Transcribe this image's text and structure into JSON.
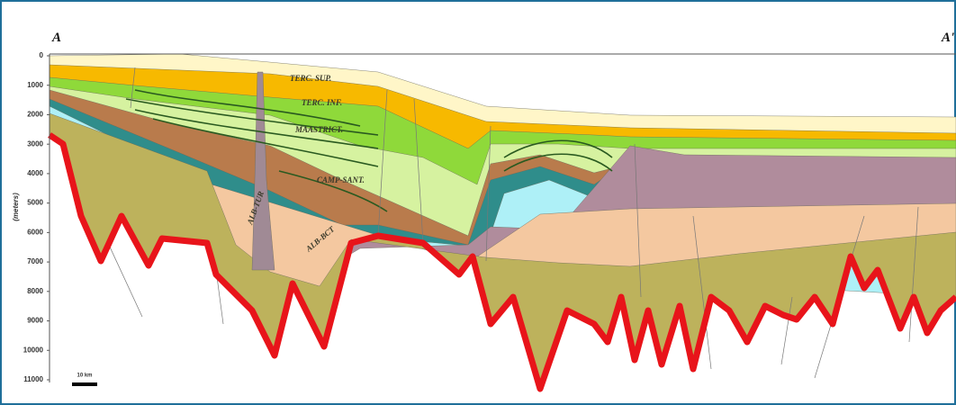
{
  "section": {
    "start_label": "A",
    "end_label": "A'",
    "axis_label": "(meters)",
    "scale_bar": "10 km",
    "depth_ticks": [
      0,
      1000,
      2000,
      3000,
      4000,
      5000,
      6000,
      7000,
      8000,
      9000,
      10000,
      11000
    ]
  },
  "layers": [
    "TERC. SUP.",
    "TERC. INF.",
    "MAASTRICT.",
    "CAMP-SANT.",
    "ALB-TUR",
    "ALB-BCT"
  ]
}
